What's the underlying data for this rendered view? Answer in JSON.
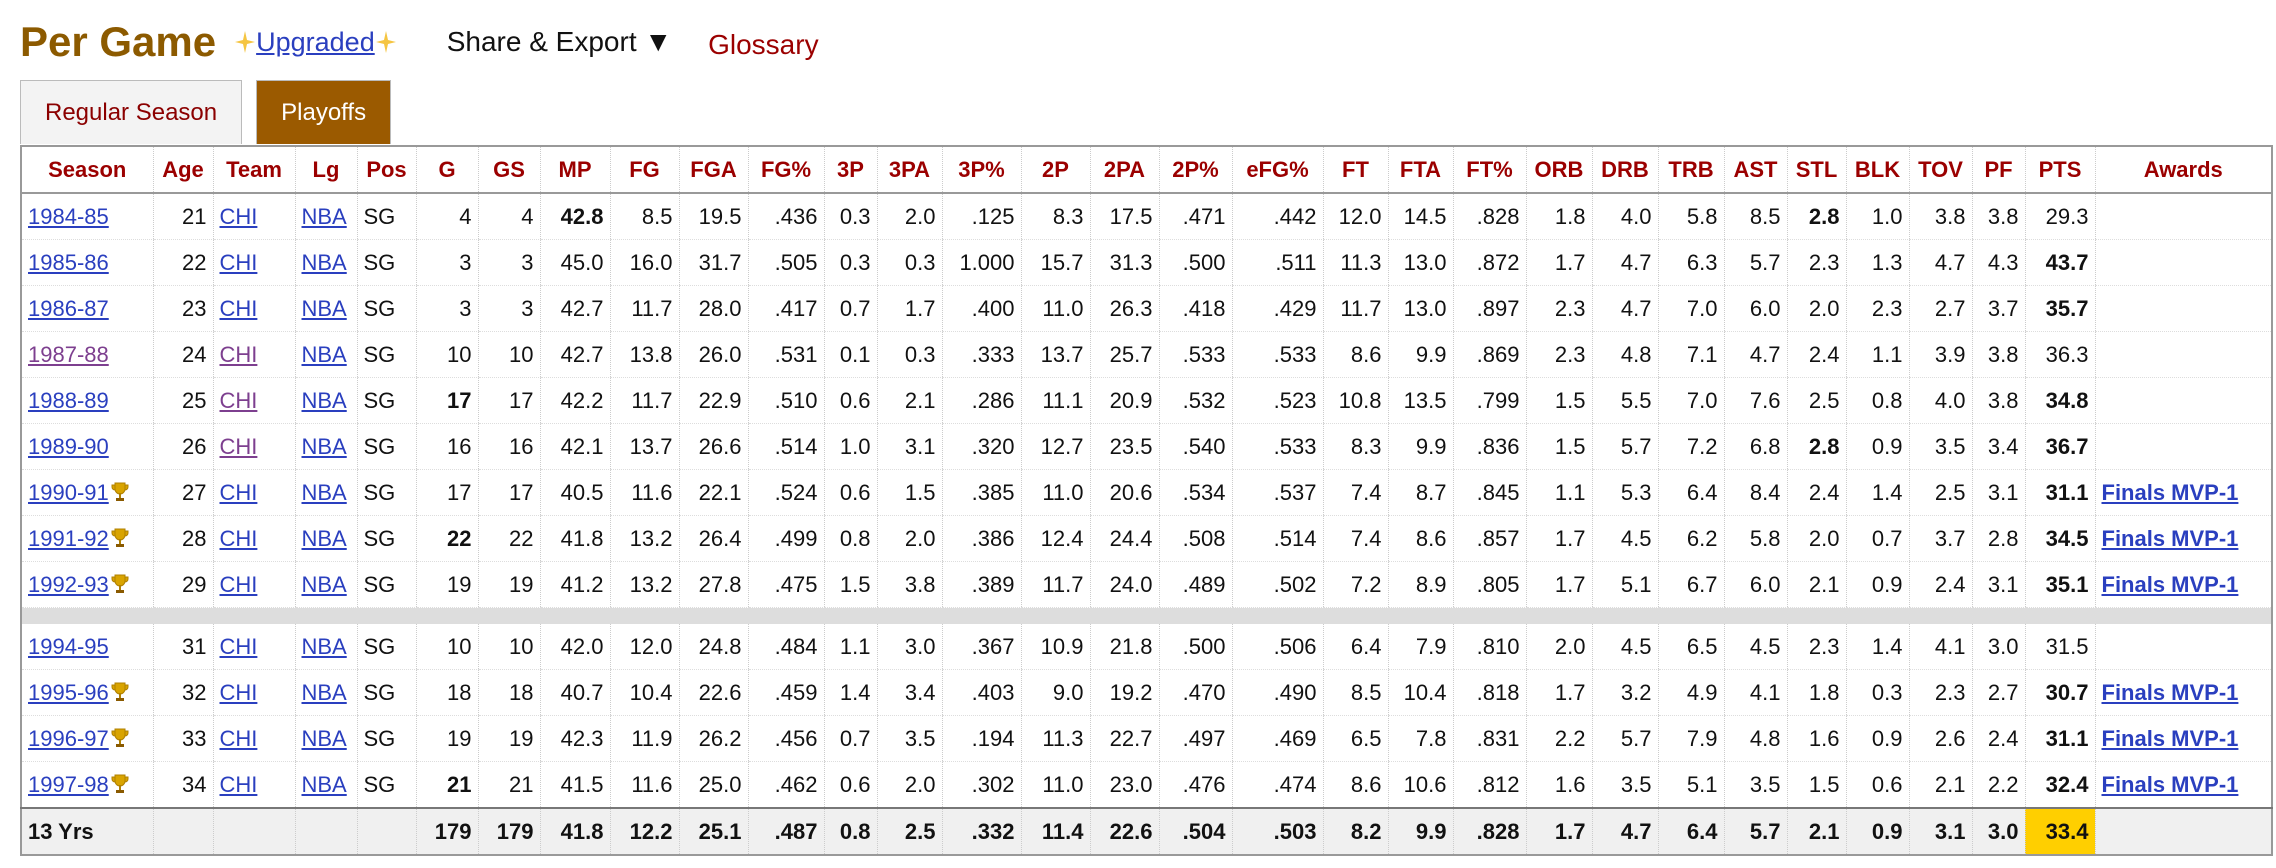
{
  "header": {
    "title": "Per Game",
    "upgrade_link": "Upgraded",
    "share_export": "Share & Export ▼",
    "glossary": "Glossary"
  },
  "tabs": [
    {
      "label": "Regular Season",
      "active": false
    },
    {
      "label": "Playoffs",
      "active": true
    }
  ],
  "table": {
    "columns": [
      "Season",
      "Age",
      "Team",
      "Lg",
      "Pos",
      "G",
      "GS",
      "MP",
      "FG",
      "FGA",
      "FG%",
      "3P",
      "3PA",
      "3P%",
      "2P",
      "2PA",
      "2P%",
      "eFG%",
      "FT",
      "FTA",
      "FT%",
      "ORB",
      "DRB",
      "TRB",
      "AST",
      "STL",
      "BLK",
      "TOV",
      "PF",
      "PTS",
      "Awards"
    ],
    "link_columns": [
      0,
      2,
      3,
      30
    ],
    "row_groups": [
      [
        {
          "cells": [
            "1984-85",
            "21",
            "CHI",
            "NBA",
            "SG",
            "4",
            "4",
            "42.8",
            "8.5",
            "19.5",
            ".436",
            "0.3",
            "2.0",
            ".125",
            "8.3",
            "17.5",
            ".471",
            ".442",
            "12.0",
            "14.5",
            ".828",
            "1.8",
            "4.0",
            "5.8",
            "8.5",
            "2.8",
            "1.0",
            "3.8",
            "3.8",
            "29.3",
            null
          ],
          "bold": [
            7,
            25
          ]
        },
        {
          "cells": [
            "1985-86",
            "22",
            "CHI",
            "NBA",
            "SG",
            "3",
            "3",
            "45.0",
            "16.0",
            "31.7",
            ".505",
            "0.3",
            "0.3",
            "1.000",
            "15.7",
            "31.3",
            ".500",
            ".511",
            "11.3",
            "13.0",
            ".872",
            "1.7",
            "4.7",
            "6.3",
            "5.7",
            "2.3",
            "1.3",
            "4.7",
            "4.3",
            "43.7",
            null
          ],
          "bold": [
            29
          ]
        },
        {
          "cells": [
            "1986-87",
            "23",
            "CHI",
            "NBA",
            "SG",
            "3",
            "3",
            "42.7",
            "11.7",
            "28.0",
            ".417",
            "0.7",
            "1.7",
            ".400",
            "11.0",
            "26.3",
            ".418",
            ".429",
            "11.7",
            "13.0",
            ".897",
            "2.3",
            "4.7",
            "7.0",
            "6.0",
            "2.0",
            "2.3",
            "2.7",
            "3.7",
            "35.7",
            null
          ],
          "bold": [
            29
          ]
        },
        {
          "cells": [
            "1987-88",
            "24",
            "CHI",
            "NBA",
            "SG",
            "10",
            "10",
            "42.7",
            "13.8",
            "26.0",
            ".531",
            "0.1",
            "0.3",
            ".333",
            "13.7",
            "25.7",
            ".533",
            ".533",
            "8.6",
            "9.9",
            ".869",
            "2.3",
            "4.8",
            "7.1",
            "4.7",
            "2.4",
            "1.1",
            "3.9",
            "3.8",
            "36.3",
            null
          ],
          "bold": [],
          "visited": [
            0,
            2
          ]
        },
        {
          "cells": [
            "1988-89",
            "25",
            "CHI",
            "NBA",
            "SG",
            "17",
            "17",
            "42.2",
            "11.7",
            "22.9",
            ".510",
            "0.6",
            "2.1",
            ".286",
            "11.1",
            "20.9",
            ".532",
            ".523",
            "10.8",
            "13.5",
            ".799",
            "1.5",
            "5.5",
            "7.0",
            "7.6",
            "2.5",
            "0.8",
            "4.0",
            "3.8",
            "34.8",
            null
          ],
          "bold": [
            5,
            29
          ],
          "visited": [
            2
          ]
        },
        {
          "cells": [
            "1989-90",
            "26",
            "CHI",
            "NBA",
            "SG",
            "16",
            "16",
            "42.1",
            "13.7",
            "26.6",
            ".514",
            "1.0",
            "3.1",
            ".320",
            "12.7",
            "23.5",
            ".540",
            ".533",
            "8.3",
            "9.9",
            ".836",
            "1.5",
            "5.7",
            "7.2",
            "6.8",
            "2.8",
            "0.9",
            "3.5",
            "3.4",
            "36.7",
            null
          ],
          "bold": [
            25,
            29
          ],
          "visited": [
            2
          ]
        },
        {
          "cells": [
            "1990-91",
            "27",
            "CHI",
            "NBA",
            "SG",
            "17",
            "17",
            "40.5",
            "11.6",
            "22.1",
            ".524",
            "0.6",
            "1.5",
            ".385",
            "11.0",
            "20.6",
            ".534",
            ".537",
            "7.4",
            "8.7",
            ".845",
            "1.1",
            "5.3",
            "6.4",
            "8.4",
            "2.4",
            "1.4",
            "2.5",
            "3.1",
            "31.1",
            "Finals MVP-1"
          ],
          "bold": [
            29
          ],
          "trophy": true
        },
        {
          "cells": [
            "1991-92",
            "28",
            "CHI",
            "NBA",
            "SG",
            "22",
            "22",
            "41.8",
            "13.2",
            "26.4",
            ".499",
            "0.8",
            "2.0",
            ".386",
            "12.4",
            "24.4",
            ".508",
            ".514",
            "7.4",
            "8.6",
            ".857",
            "1.7",
            "4.5",
            "6.2",
            "5.8",
            "2.0",
            "0.7",
            "3.7",
            "2.8",
            "34.5",
            "Finals MVP-1"
          ],
          "bold": [
            5,
            29
          ],
          "trophy": true
        },
        {
          "cells": [
            "1992-93",
            "29",
            "CHI",
            "NBA",
            "SG",
            "19",
            "19",
            "41.2",
            "13.2",
            "27.8",
            ".475",
            "1.5",
            "3.8",
            ".389",
            "11.7",
            "24.0",
            ".489",
            ".502",
            "7.2",
            "8.9",
            ".805",
            "1.7",
            "5.1",
            "6.7",
            "6.0",
            "2.1",
            "0.9",
            "2.4",
            "3.1",
            "35.1",
            "Finals MVP-1"
          ],
          "bold": [
            29
          ],
          "trophy": true
        }
      ],
      [
        {
          "cells": [
            "1994-95",
            "31",
            "CHI",
            "NBA",
            "SG",
            "10",
            "10",
            "42.0",
            "12.0",
            "24.8",
            ".484",
            "1.1",
            "3.0",
            ".367",
            "10.9",
            "21.8",
            ".500",
            ".506",
            "6.4",
            "7.9",
            ".810",
            "2.0",
            "4.5",
            "6.5",
            "4.5",
            "2.3",
            "1.4",
            "4.1",
            "3.0",
            "31.5",
            null
          ],
          "bold": []
        },
        {
          "cells": [
            "1995-96",
            "32",
            "CHI",
            "NBA",
            "SG",
            "18",
            "18",
            "40.7",
            "10.4",
            "22.6",
            ".459",
            "1.4",
            "3.4",
            ".403",
            "9.0",
            "19.2",
            ".470",
            ".490",
            "8.5",
            "10.4",
            ".818",
            "1.7",
            "3.2",
            "4.9",
            "4.1",
            "1.8",
            "0.3",
            "2.3",
            "2.7",
            "30.7",
            "Finals MVP-1"
          ],
          "bold": [
            29
          ],
          "trophy": true
        },
        {
          "cells": [
            "1996-97",
            "33",
            "CHI",
            "NBA",
            "SG",
            "19",
            "19",
            "42.3",
            "11.9",
            "26.2",
            ".456",
            "0.7",
            "3.5",
            ".194",
            "11.3",
            "22.7",
            ".497",
            ".469",
            "6.5",
            "7.8",
            ".831",
            "2.2",
            "5.7",
            "7.9",
            "4.8",
            "1.6",
            "0.9",
            "2.6",
            "2.4",
            "31.1",
            "Finals MVP-1"
          ],
          "bold": [
            29
          ],
          "trophy": true
        },
        {
          "cells": [
            "1997-98",
            "34",
            "CHI",
            "NBA",
            "SG",
            "21",
            "21",
            "41.5",
            "11.6",
            "25.0",
            ".462",
            "0.6",
            "2.0",
            ".302",
            "11.0",
            "23.0",
            ".476",
            ".474",
            "8.6",
            "10.6",
            ".812",
            "1.6",
            "3.5",
            "5.1",
            "3.5",
            "1.5",
            "0.6",
            "2.1",
            "2.2",
            "32.4",
            "Finals MVP-1"
          ],
          "bold": [
            5,
            29
          ],
          "trophy": true
        }
      ]
    ],
    "footer": {
      "cells": [
        "13 Yrs",
        null,
        null,
        null,
        null,
        "179",
        "179",
        "41.8",
        "12.2",
        "25.1",
        ".487",
        "0.8",
        "2.5",
        ".332",
        "11.4",
        "22.6",
        ".504",
        ".503",
        "8.2",
        "9.9",
        ".828",
        "1.7",
        "4.7",
        "6.4",
        "5.7",
        "2.1",
        "0.9",
        "3.1",
        "3.0",
        "33.4",
        null
      ],
      "highlight": [
        29
      ]
    }
  }
}
